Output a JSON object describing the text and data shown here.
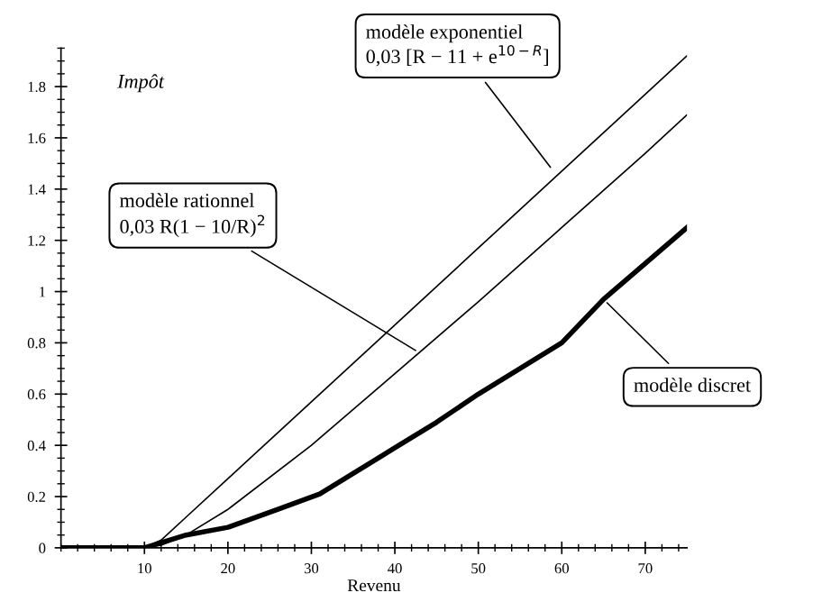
{
  "chart_data": {
    "type": "line",
    "xlabel": "Revenu",
    "ylabel": "Impôt",
    "xlim": [
      0,
      75
    ],
    "ylim": [
      0,
      1.95
    ],
    "xticks": [
      10,
      20,
      30,
      40,
      50,
      60,
      70
    ],
    "yticks": [
      0,
      0.2,
      0.4,
      0.6,
      0.8,
      1,
      1.2,
      1.4,
      1.6,
      1.8
    ],
    "grid": false,
    "legend": false,
    "marker": "none",
    "series": [
      {
        "color": "#000000",
        "line_style": "solid",
        "x": [
          10,
          12,
          15,
          20,
          30,
          40,
          50,
          60,
          70,
          75
        ],
        "values": [
          0,
          0.03,
          0.12,
          0.27,
          0.57,
          0.87,
          1.17,
          1.47,
          1.77,
          1.92
        ]
      },
      {
        "color": "#000000",
        "line_style": "solid",
        "x": [
          10,
          12,
          15,
          20,
          30,
          40,
          50,
          60,
          70,
          75
        ],
        "values": [
          0,
          0.01,
          0.05,
          0.15,
          0.4,
          0.68,
          0.96,
          1.25,
          1.54,
          1.69
        ]
      },
      {
        "color": "#000000",
        "line_style": "solid",
        "x": [
          0,
          10,
          15,
          20,
          26,
          31,
          35,
          40,
          45,
          50,
          55,
          60,
          65,
          70,
          75
        ],
        "values": [
          0,
          0,
          0.05,
          0.08,
          0.15,
          0.21,
          0.29,
          0.39,
          0.49,
          0.6,
          0.7,
          0.8,
          0.97,
          1.11,
          1.25
        ]
      }
    ],
    "annotations": [
      {
        "text": "modèle exponentiel\n0,03 [R − 11 + e$^{10−R}$]",
        "x": 59,
        "y": 1.47
      },
      {
        "text": "modèle rationnel\n0,03 R(1 − 10/R)$^{2}$",
        "x": 43,
        "y": 0.76
      },
      {
        "text": "modèle discret",
        "x": 65,
        "y": 0.97
      }
    ]
  }
}
